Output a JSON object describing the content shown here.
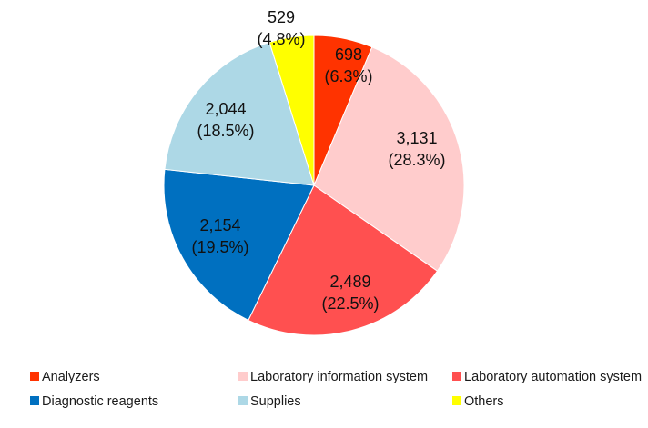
{
  "chart_data": {
    "type": "pie",
    "title": "",
    "start": "12 o'clock, clockwise",
    "slices": [
      {
        "name": "Analyzers",
        "value": 698,
        "value_label": "698",
        "percent_label": "(6.3%)",
        "color": "#FF3300"
      },
      {
        "name": "Laboratory information system",
        "value": 3131,
        "value_label": "3,131",
        "percent_label": "(28.3%)",
        "color": "#FFCCCC"
      },
      {
        "name": "Laboratory automation system",
        "value": 2489,
        "value_label": "2,489",
        "percent_label": "(22.5%)",
        "color": "#FF5050"
      },
      {
        "name": "Diagnostic reagents",
        "value": 2154,
        "value_label": "2,154",
        "percent_label": "(19.5%)",
        "color": "#0070C0"
      },
      {
        "name": "Supplies",
        "value": 2044,
        "value_label": "2,044",
        "percent_label": "(18.5%)",
        "color": "#ADD8E6"
      },
      {
        "name": "Others",
        "value": 529,
        "value_label": "529",
        "percent_label": "(4.8%)",
        "color": "#FFFF00"
      }
    ],
    "legend_position": "bottom"
  }
}
